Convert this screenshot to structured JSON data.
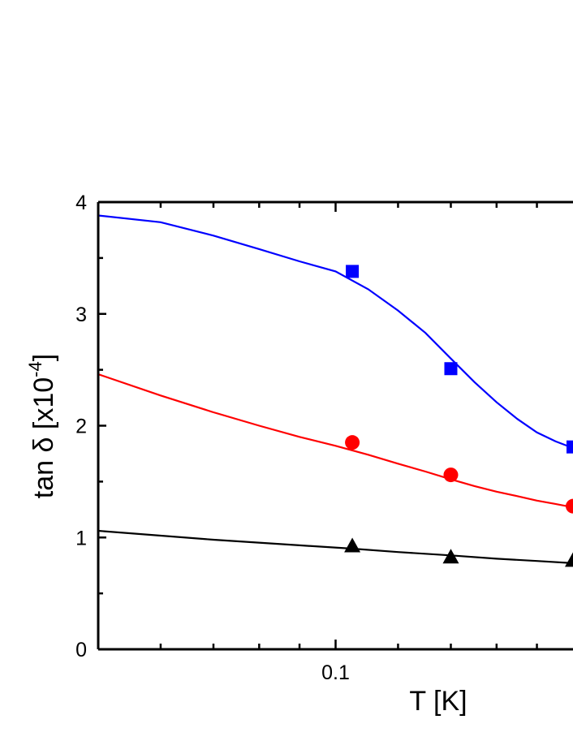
{
  "chart_data": {
    "type": "scatter",
    "xlabel": "T [K]",
    "ylabel": {
      "prefix": "tan δ [x10",
      "superscript": "-4",
      "suffix": "]"
    },
    "x_scale": "log",
    "xlim": [
      0.05,
      0.2
    ],
    "ylim": [
      0,
      4
    ],
    "x_tick_labels": [
      {
        "value": 0.1,
        "label": "0.1"
      }
    ],
    "y_tick_labels": [
      "0",
      "1",
      "2",
      "3",
      "4"
    ],
    "legend": "none",
    "series": [
      {
        "color": "#0000ff",
        "marker": "square",
        "points": [
          [
            0.105,
            3.38
          ],
          [
            0.14,
            2.51
          ],
          [
            0.2,
            1.81
          ]
        ],
        "fit": [
          [
            0.05,
            3.88
          ],
          [
            0.06,
            3.82
          ],
          [
            0.07,
            3.7
          ],
          [
            0.08,
            3.58
          ],
          [
            0.09,
            3.47
          ],
          [
            0.1,
            3.38
          ],
          [
            0.11,
            3.22
          ],
          [
            0.12,
            3.03
          ],
          [
            0.13,
            2.83
          ],
          [
            0.14,
            2.6
          ],
          [
            0.15,
            2.39
          ],
          [
            0.16,
            2.21
          ],
          [
            0.17,
            2.06
          ],
          [
            0.18,
            1.94
          ],
          [
            0.19,
            1.86
          ],
          [
            0.2,
            1.8
          ]
        ]
      },
      {
        "color": "#ff0000",
        "marker": "circle",
        "points": [
          [
            0.105,
            1.85
          ],
          [
            0.14,
            1.56
          ],
          [
            0.2,
            1.28
          ]
        ],
        "fit": [
          [
            0.05,
            2.46
          ],
          [
            0.06,
            2.27
          ],
          [
            0.07,
            2.12
          ],
          [
            0.08,
            2.0
          ],
          [
            0.09,
            1.9
          ],
          [
            0.1,
            1.82
          ],
          [
            0.11,
            1.74
          ],
          [
            0.12,
            1.66
          ],
          [
            0.13,
            1.59
          ],
          [
            0.14,
            1.52
          ],
          [
            0.15,
            1.46
          ],
          [
            0.16,
            1.41
          ],
          [
            0.17,
            1.37
          ],
          [
            0.18,
            1.33
          ],
          [
            0.19,
            1.3
          ],
          [
            0.2,
            1.27
          ]
        ]
      },
      {
        "color": "#000000",
        "marker": "triangle",
        "points": [
          [
            0.105,
            0.92
          ],
          [
            0.14,
            0.82
          ],
          [
            0.2,
            0.79
          ]
        ],
        "fit": [
          [
            0.05,
            1.06
          ],
          [
            0.07,
            0.98
          ],
          [
            0.09,
            0.93
          ],
          [
            0.105,
            0.9
          ],
          [
            0.12,
            0.87
          ],
          [
            0.14,
            0.84
          ],
          [
            0.16,
            0.81
          ],
          [
            0.18,
            0.79
          ],
          [
            0.2,
            0.77
          ]
        ]
      }
    ]
  }
}
